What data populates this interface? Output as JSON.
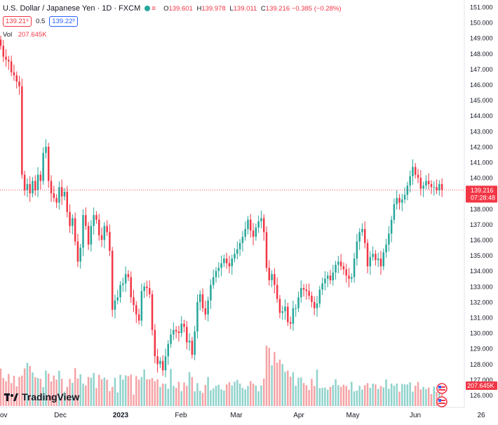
{
  "header": {
    "title": "U.S. Dollar / Japanese Yen · 1D · FXCM",
    "ohlc": [
      {
        "label": "O",
        "value": "139.601"
      },
      {
        "label": "H",
        "value": "139.978"
      },
      {
        "label": "L",
        "value": "139.011"
      },
      {
        "label": "C",
        "value": "139.216"
      }
    ],
    "change": "−0.385 (−0.28%)",
    "sell_price": "139.21⁸",
    "spread": "0.5",
    "buy_price": "139.22³",
    "volume_label": "Vol",
    "volume_value": "207.645K"
  },
  "colors": {
    "up": "#26a69a",
    "down": "#f23645",
    "up_vol": "#90d3cc",
    "down_vol": "#f5a3a6",
    "grid": "#f0f3fa"
  },
  "price_tag": {
    "price": "139.216",
    "countdown": "07:28:48"
  },
  "volume_tag": "207.645K",
  "logo_text": "TradingView",
  "chart_data": {
    "type": "candlestick",
    "title": "U.S. Dollar / Japanese Yen · 1D · FXCM",
    "y_ticks": [
      "151.000",
      "150.000",
      "149.000",
      "148.000",
      "147.000",
      "146.000",
      "145.000",
      "144.000",
      "143.000",
      "142.000",
      "141.000",
      "140.000",
      "139.000",
      "138.000",
      "137.000",
      "136.000",
      "135.000",
      "134.000",
      "133.000",
      "132.000",
      "131.000",
      "130.000",
      "129.000",
      "128.000",
      "127.000",
      "126.000"
    ],
    "x_ticks": [
      "ov",
      "Dec",
      "2023",
      "Feb",
      "Mar",
      "Apr",
      "May",
      "Jun",
      "26"
    ],
    "ylim": [
      126,
      151
    ],
    "last_price": 139.216,
    "grid": true,
    "closes": [
      148.5,
      147.8,
      147.6,
      147.5,
      146.8,
      146.6,
      146.2,
      145.9,
      140.2,
      139.2,
      139.6,
      139.0,
      139.8,
      139.2,
      140.2,
      139.8,
      141.6,
      142.0,
      139.8,
      139.0,
      138.7,
      138.4,
      139.4,
      138.8,
      139.1,
      137.8,
      136.9,
      137.4,
      135.9,
      134.6,
      135.5,
      137.6,
      136.9,
      135.7,
      136.9,
      137.6,
      137.3,
      136.3,
      136.0,
      136.9,
      136.5,
      135.3,
      131.5,
      132.1,
      132.3,
      133.1,
      133.2,
      133.8,
      133.6,
      132.3,
      131.8,
      131.2,
      130.8,
      132.7,
      133.0,
      132.9,
      132.5,
      130.2,
      128.5,
      128.0,
      128.2,
      127.6,
      128.5,
      129.3,
      129.9,
      130.2,
      130.1,
      130.0,
      130.6,
      130.4,
      129.4,
      129.5,
      128.6,
      130.1,
      132.0,
      132.5,
      131.6,
      131.2,
      132.1,
      133.1,
      133.6,
      134.0,
      134.2,
      134.5,
      134.8,
      134.5,
      134.3,
      134.8,
      135.1,
      135.4,
      135.8,
      136.2,
      136.7,
      137.3,
      136.6,
      136.2,
      136.8,
      137.2,
      137.4,
      136.5,
      134.2,
      133.4,
      133.8,
      133.1,
      132.2,
      131.3,
      131.4,
      131.7,
      130.7,
      130.6,
      131.6,
      131.6,
      132.3,
      132.9,
      132.8,
      132.7,
      132.4,
      132.0,
      131.6,
      131.9,
      132.8,
      133.2,
      133.5,
      133.7,
      133.4,
      133.9,
      134.4,
      134.6,
      134.3,
      134.1,
      133.7,
      133.5,
      133.6,
      134.8,
      135.9,
      136.5,
      136.7,
      135.8,
      134.3,
      134.9,
      135.1,
      134.7,
      134.8,
      134.3,
      135.2,
      135.7,
      136.4,
      137.3,
      138.3,
      138.7,
      138.4,
      138.6,
      138.9,
      139.5,
      140.1,
      140.7,
      140.2,
      140.0,
      139.3,
      139.5,
      139.8,
      139.6,
      139.4,
      139.4,
      139.2,
      139.6,
      139.216
    ],
    "volumes": [
      1.4,
      1.05,
      0.93,
      1.2,
      0.86,
      1.13,
      0.74,
      1.09,
      1.14,
      1.41,
      1.62,
      1.5,
      1.26,
      1.08,
      1.05,
      1.02,
      0.71,
      1.33,
      1.22,
      0.92,
      1.14,
      0.99,
      1.32,
      1.02,
      0.54,
      0.72,
      1.02,
      0.87,
      1.42,
      1.03,
      1.19,
      0.84,
      0.77,
      1.09,
      1.06,
      1.24,
      0.67,
      1.17,
      1.0,
      1.07,
      0.99,
      0.56,
      0.72,
      1.06,
      0.51,
      1.17,
      0.99,
      1.15,
      1.12,
      1.18,
      0.43,
      1.12,
      0.99,
      1.09,
      1.37,
      1.0,
      1.0,
      1.05,
      0.93,
      1.0,
      0.72,
      0.84,
      0.83,
      0.65,
      1.39,
      0.76,
      0.68,
      0.91,
      0.56,
      0.88,
      0.76,
      1.27,
      1.08,
      0.55,
      0.86,
      0.57,
      0.49,
      0.79,
      1.09,
      0.59,
      0.66,
      0.76,
      0.8,
      0.63,
      0.58,
      0.81,
      0.89,
      0.77,
      0.91,
      0.98,
      0.84,
      0.68,
      0.62,
      0.75,
      0.93,
      0.84,
      0.77,
      0.55,
      0.77,
      1.03,
      2.26,
      2.18,
      1.53,
      2.03,
      1.63,
      1.74,
      1.57,
      1.28,
      1.33,
      1.1,
      1.27,
      0.76,
      1.06,
      1.07,
      0.86,
      0.78,
      0.6,
      1.02,
      0.75,
      1.37,
      0.67,
      0.68,
      0.69,
      0.61,
      0.72,
      0.79,
      1.0,
      0.78,
      0.72,
      0.8,
      0.75,
      0.61,
      0.91,
      0.55,
      0.58,
      0.76,
      0.62,
      0.78,
      0.86,
      0.68,
      0.84,
      0.81,
      0.64,
      0.75,
      0.7,
      1.0,
      0.65,
      0.84,
      0.76,
      0.84,
      0.54,
      0.83,
      0.81,
      0.81,
      0.89,
      0.54,
      0.76,
      0.9,
      0.62,
      0.72,
      0.63,
      0.69,
      0.45,
      0.73,
      0.53,
      0.77,
      0.6
    ]
  }
}
